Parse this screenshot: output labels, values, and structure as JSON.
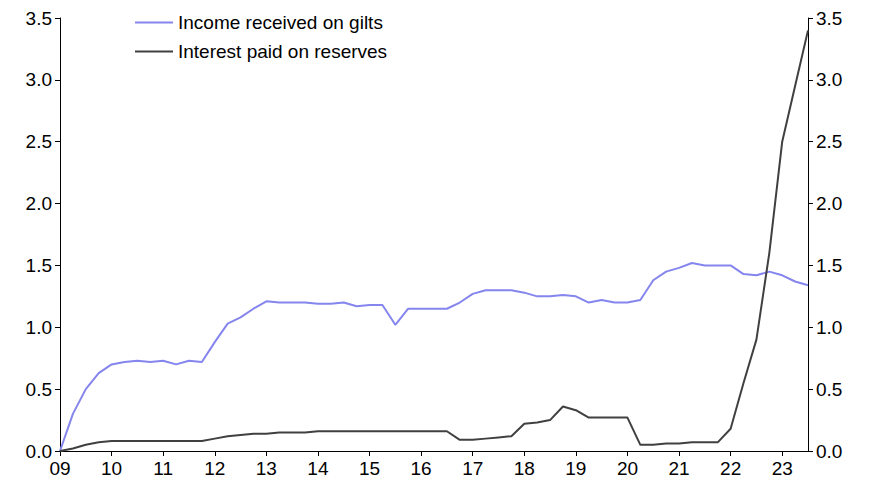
{
  "chart_data": {
    "type": "line",
    "x": [
      2009.0,
      2009.25,
      2009.5,
      2009.75,
      2010.0,
      2010.25,
      2010.5,
      2010.75,
      2011.0,
      2011.25,
      2011.5,
      2011.75,
      2012.0,
      2012.25,
      2012.5,
      2012.75,
      2013.0,
      2013.25,
      2013.5,
      2013.75,
      2014.0,
      2014.25,
      2014.5,
      2014.75,
      2015.0,
      2015.25,
      2015.5,
      2015.75,
      2016.0,
      2016.25,
      2016.5,
      2016.75,
      2017.0,
      2017.25,
      2017.5,
      2017.75,
      2018.0,
      2018.25,
      2018.5,
      2018.75,
      2019.0,
      2019.25,
      2019.5,
      2019.75,
      2020.0,
      2020.25,
      2020.5,
      2020.75,
      2021.0,
      2021.25,
      2021.5,
      2021.75,
      2022.0,
      2022.25,
      2022.5,
      2022.75,
      2023.0,
      2023.25,
      2023.5
    ],
    "series": [
      {
        "name": "Income received on gilts",
        "color": "#8585ee",
        "values": [
          0.0,
          0.3,
          0.5,
          0.63,
          0.7,
          0.72,
          0.73,
          0.72,
          0.73,
          0.7,
          0.73,
          0.72,
          0.88,
          1.03,
          1.08,
          1.15,
          1.21,
          1.2,
          1.2,
          1.2,
          1.19,
          1.19,
          1.2,
          1.17,
          1.18,
          1.18,
          1.02,
          1.15,
          1.15,
          1.15,
          1.15,
          1.2,
          1.27,
          1.3,
          1.3,
          1.3,
          1.28,
          1.25,
          1.25,
          1.26,
          1.25,
          1.2,
          1.22,
          1.2,
          1.2,
          1.22,
          1.38,
          1.45,
          1.48,
          1.52,
          1.5,
          1.5,
          1.5,
          1.43,
          1.42,
          1.45,
          1.42,
          1.37,
          1.34
        ]
      },
      {
        "name": "Interest paid on reserves",
        "color": "#404040",
        "values": [
          0.0,
          0.02,
          0.05,
          0.07,
          0.08,
          0.08,
          0.08,
          0.08,
          0.08,
          0.08,
          0.08,
          0.08,
          0.1,
          0.12,
          0.13,
          0.14,
          0.14,
          0.15,
          0.15,
          0.15,
          0.16,
          0.16,
          0.16,
          0.16,
          0.16,
          0.16,
          0.16,
          0.16,
          0.16,
          0.16,
          0.16,
          0.09,
          0.09,
          0.1,
          0.11,
          0.12,
          0.22,
          0.23,
          0.25,
          0.36,
          0.33,
          0.27,
          0.27,
          0.27,
          0.27,
          0.05,
          0.05,
          0.06,
          0.06,
          0.07,
          0.07,
          0.07,
          0.18,
          0.55,
          0.9,
          1.6,
          2.5,
          2.95,
          3.4
        ]
      }
    ],
    "xlim": [
      2009,
      2023.5
    ],
    "xticks": [
      {
        "value": 2009,
        "label": "09"
      },
      {
        "value": 2010,
        "label": "10"
      },
      {
        "value": 2011,
        "label": "11"
      },
      {
        "value": 2012,
        "label": "12"
      },
      {
        "value": 2013,
        "label": "13"
      },
      {
        "value": 2014,
        "label": "14"
      },
      {
        "value": 2015,
        "label": "15"
      },
      {
        "value": 2016,
        "label": "16"
      },
      {
        "value": 2017,
        "label": "17"
      },
      {
        "value": 2018,
        "label": "18"
      },
      {
        "value": 2019,
        "label": "19"
      },
      {
        "value": 2020,
        "label": "20"
      },
      {
        "value": 2021,
        "label": "21"
      },
      {
        "value": 2022,
        "label": "22"
      },
      {
        "value": 2023,
        "label": "23"
      }
    ],
    "ylim": [
      0,
      3.5
    ],
    "yticks": [
      {
        "value": 0,
        "label": "0.0"
      },
      {
        "value": 0.5,
        "label": "0.5"
      },
      {
        "value": 1,
        "label": "1.0"
      },
      {
        "value": 1.5,
        "label": "1.5"
      },
      {
        "value": 2,
        "label": "2.0"
      },
      {
        "value": 2.5,
        "label": "2.5"
      },
      {
        "value": 3,
        "label": "3.0"
      },
      {
        "value": 3.5,
        "label": "3.5"
      }
    ],
    "y2lim": [
      0,
      3.5
    ],
    "y2ticks": [
      {
        "value": 0,
        "label": "0.0"
      },
      {
        "value": 0.5,
        "label": "0.5"
      },
      {
        "value": 1,
        "label": "1.0"
      },
      {
        "value": 1.5,
        "label": "1.5"
      },
      {
        "value": 2,
        "label": "2.0"
      },
      {
        "value": 2.5,
        "label": "2.5"
      },
      {
        "value": 3,
        "label": "3.0"
      },
      {
        "value": 3.5,
        "label": "3.5"
      }
    ],
    "legend": "upper left",
    "grid": false
  }
}
